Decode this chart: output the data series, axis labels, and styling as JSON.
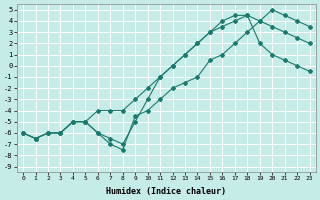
{
  "xlabel": "Humidex (Indice chaleur)",
  "ylabel": "",
  "bg_color": "#c6ece8",
  "grid_color": "#ffffff",
  "line_color": "#1a7a6e",
  "xlim": [
    -0.5,
    23.5
  ],
  "ylim": [
    -9.5,
    5.5
  ],
  "xticks": [
    0,
    1,
    2,
    3,
    4,
    5,
    6,
    7,
    8,
    9,
    10,
    11,
    12,
    13,
    14,
    15,
    16,
    17,
    18,
    19,
    20,
    21,
    22,
    23
  ],
  "yticks": [
    5,
    4,
    3,
    2,
    1,
    0,
    -1,
    -2,
    -3,
    -4,
    -5,
    -6,
    -7,
    -8,
    -9
  ],
  "line1_x": [
    0,
    1,
    2,
    3,
    4,
    5,
    6,
    7,
    8,
    9,
    10,
    11,
    12,
    13,
    14,
    15,
    16,
    17,
    18,
    19,
    20,
    21,
    22,
    23
  ],
  "line1_y": [
    -6,
    -6.5,
    -6,
    -6,
    -5,
    -5,
    -6,
    -6.5,
    -7,
    -5,
    -3,
    -1,
    0,
    1,
    2,
    3,
    4,
    4.5,
    4.5,
    4,
    3.5,
    3,
    2.5,
    2
  ],
  "line2_x": [
    0,
    1,
    2,
    3,
    4,
    5,
    6,
    7,
    8,
    9,
    10,
    11,
    12,
    13,
    14,
    15,
    16,
    17,
    18,
    19,
    20,
    21,
    22,
    23
  ],
  "line2_y": [
    -6,
    -6.5,
    -6,
    -6,
    -5,
    -5,
    -4,
    -4,
    -4,
    -3,
    -2,
    -1,
    0,
    1,
    2,
    3,
    3.5,
    4,
    4.5,
    2,
    1,
    0.5,
    0,
    -0.5
  ],
  "line3_x": [
    0,
    1,
    2,
    3,
    4,
    5,
    6,
    7,
    8,
    9,
    10,
    11,
    12,
    13,
    14,
    15,
    16,
    17,
    18,
    19,
    20,
    21,
    22,
    23
  ],
  "line3_y": [
    -6,
    -6.5,
    -6,
    -6,
    -5,
    -5,
    -6,
    -7,
    -7.5,
    -4.5,
    -4,
    -3,
    -2,
    -1.5,
    -1,
    0.5,
    1,
    2,
    3,
    4,
    5,
    4.5,
    4,
    3.5
  ]
}
